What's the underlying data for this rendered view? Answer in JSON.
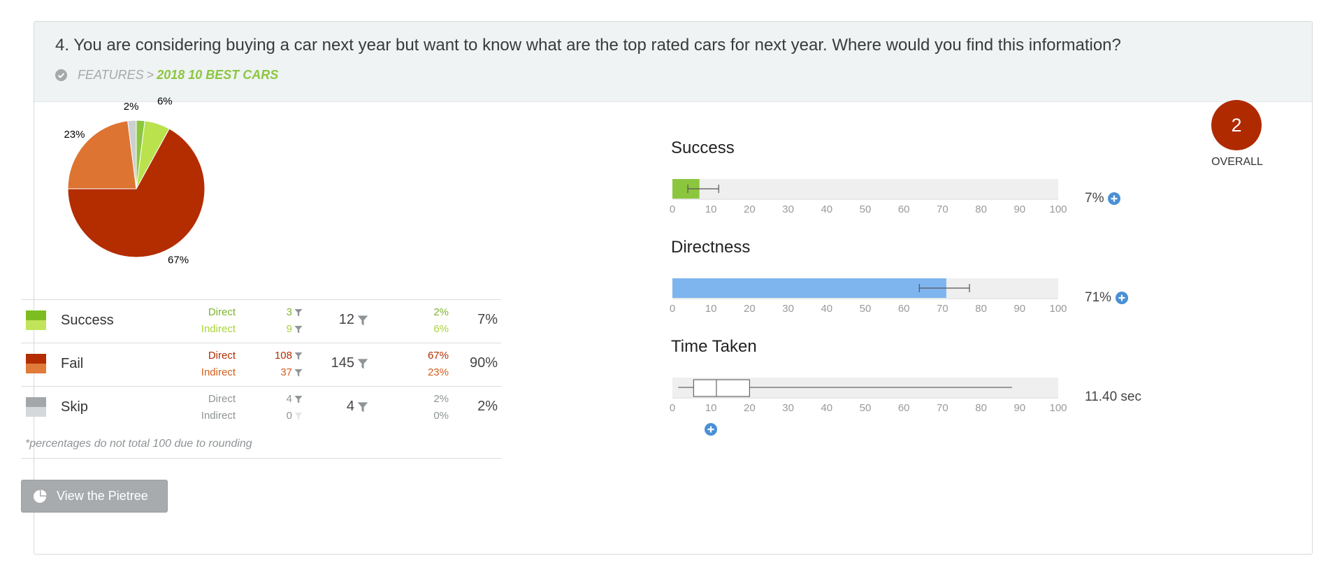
{
  "question": "4. You are considering buying a car next year but want to know what are the top rated cars for next year. Where would you find this information?",
  "breadcrumb": {
    "parent": "FEATURES",
    "separator": ">",
    "current": "2018 10 BEST CARS"
  },
  "pie": {
    "slices": [
      {
        "name": "Success Direct",
        "value": 2,
        "color": "#8cc63f"
      },
      {
        "name": "Success Indirect",
        "value": 6,
        "color": "#b9e24d"
      },
      {
        "name": "Fail Direct",
        "value": 67,
        "color": "#b32d00"
      },
      {
        "name": "Fail Indirect",
        "value": 23,
        "color": "#dd7432"
      },
      {
        "name": "Skip",
        "value": 2,
        "color": "#cdd0d2"
      }
    ],
    "labels": [
      "6%",
      "2%",
      "23%",
      "67%"
    ]
  },
  "breakdown": {
    "rows": [
      {
        "label": "Success",
        "direct_label": "Direct",
        "indirect_label": "Indirect",
        "direct_count": "3",
        "indirect_count": "9",
        "total_count": "12",
        "direct_pct": "2%",
        "indirect_pct": "6%",
        "total_pct": "7%",
        "direct_color": "#7db32c",
        "indirect_color": "#a9d43a",
        "swatch_top": "#7dbd1f",
        "swatch_bottom": "#c2e45a"
      },
      {
        "label": "Fail",
        "direct_label": "Direct",
        "indirect_label": "Indirect",
        "direct_count": "108",
        "indirect_count": "37",
        "total_count": "145",
        "direct_pct": "67%",
        "indirect_pct": "23%",
        "total_pct": "90%",
        "direct_color": "#b32d00",
        "indirect_color": "#d45f1f",
        "swatch_top": "#b32d00",
        "swatch_bottom": "#e07b3a"
      },
      {
        "label": "Skip",
        "direct_label": "Direct",
        "indirect_label": "Indirect",
        "direct_count": "4",
        "indirect_count": "0",
        "total_count": "4",
        "direct_pct": "2%",
        "indirect_pct": "0%",
        "total_pct": "2%",
        "direct_color": "#8f9496",
        "indirect_color": "#8f9496",
        "swatch_top": "#a3a7aa",
        "swatch_bottom": "#d5d8da"
      }
    ],
    "footnote": "*percentages do not total 100 due to rounding"
  },
  "pietree_button": "View the Pietree",
  "metrics": {
    "success": {
      "title": "Success",
      "value_text": "7%",
      "bar_value": 7,
      "whisker": [
        4,
        12
      ],
      "bar_color": "#8cc63f"
    },
    "directness": {
      "title": "Directness",
      "value_text": "71%",
      "bar_value": 71,
      "whisker": [
        64,
        77
      ],
      "bar_color": "#7eb5ef"
    },
    "time": {
      "title": "Time Taken",
      "value_text": "11.40 sec",
      "box": {
        "min": 1.5,
        "q1": 5.5,
        "median": 11.4,
        "q3": 20,
        "max": 88
      }
    },
    "axis": {
      "min": 0,
      "max": 100,
      "ticks": [
        0,
        10,
        20,
        30,
        40,
        50,
        60,
        70,
        80,
        90,
        100
      ]
    }
  },
  "overall": {
    "score": "2",
    "label": "OVERALL",
    "color": "#b02a00"
  },
  "colors": {
    "accent_green": "#8cc63f",
    "plus_blue": "#4a90d6",
    "filter_gray": "#8f9496"
  }
}
